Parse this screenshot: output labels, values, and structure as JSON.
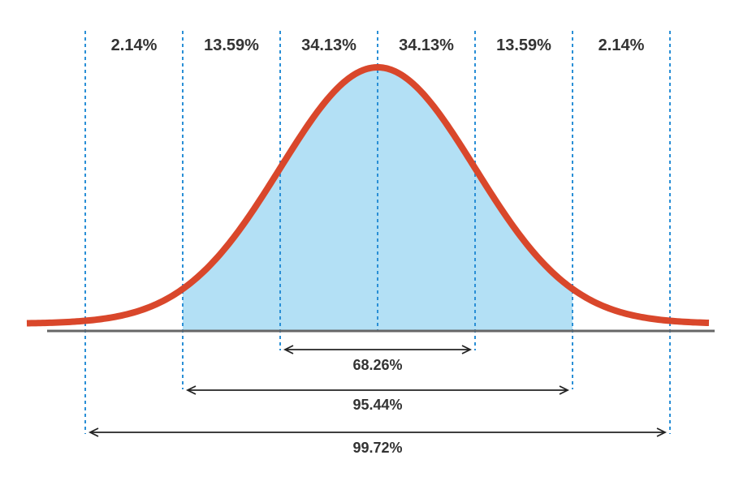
{
  "chart_data": {
    "type": "area",
    "title": "",
    "xlabel": "",
    "ylabel": "",
    "x_range_sd": [
      -3.6,
      3.4
    ],
    "boundaries_sd": [
      -3,
      -2,
      -1,
      0,
      1,
      2,
      3
    ],
    "band_labels": [
      {
        "from": -3,
        "to": -2,
        "label": "2.14%"
      },
      {
        "from": -2,
        "to": -1,
        "label": "13.59%"
      },
      {
        "from": -1,
        "to": 0,
        "label": "34.13%"
      },
      {
        "from": 0,
        "to": 1,
        "label": "34.13%"
      },
      {
        "from": 1,
        "to": 2,
        "label": "13.59%"
      },
      {
        "from": 2,
        "to": 3,
        "label": "2.14%"
      }
    ],
    "ranges": [
      {
        "from": -1,
        "to": 1,
        "label": "68.26%"
      },
      {
        "from": -2,
        "to": 2,
        "label": "95.44%"
      },
      {
        "from": -3,
        "to": 3,
        "label": "99.72%"
      }
    ],
    "fill_range_sd": [
      -2,
      2
    ],
    "grid": false,
    "legend": "none",
    "colors": {
      "curve": "#d9472b",
      "fill": "#b3e0f5",
      "divider": "#2a8fd6",
      "baseline": "#666666",
      "arrow": "#222222",
      "text": "#333333"
    }
  }
}
